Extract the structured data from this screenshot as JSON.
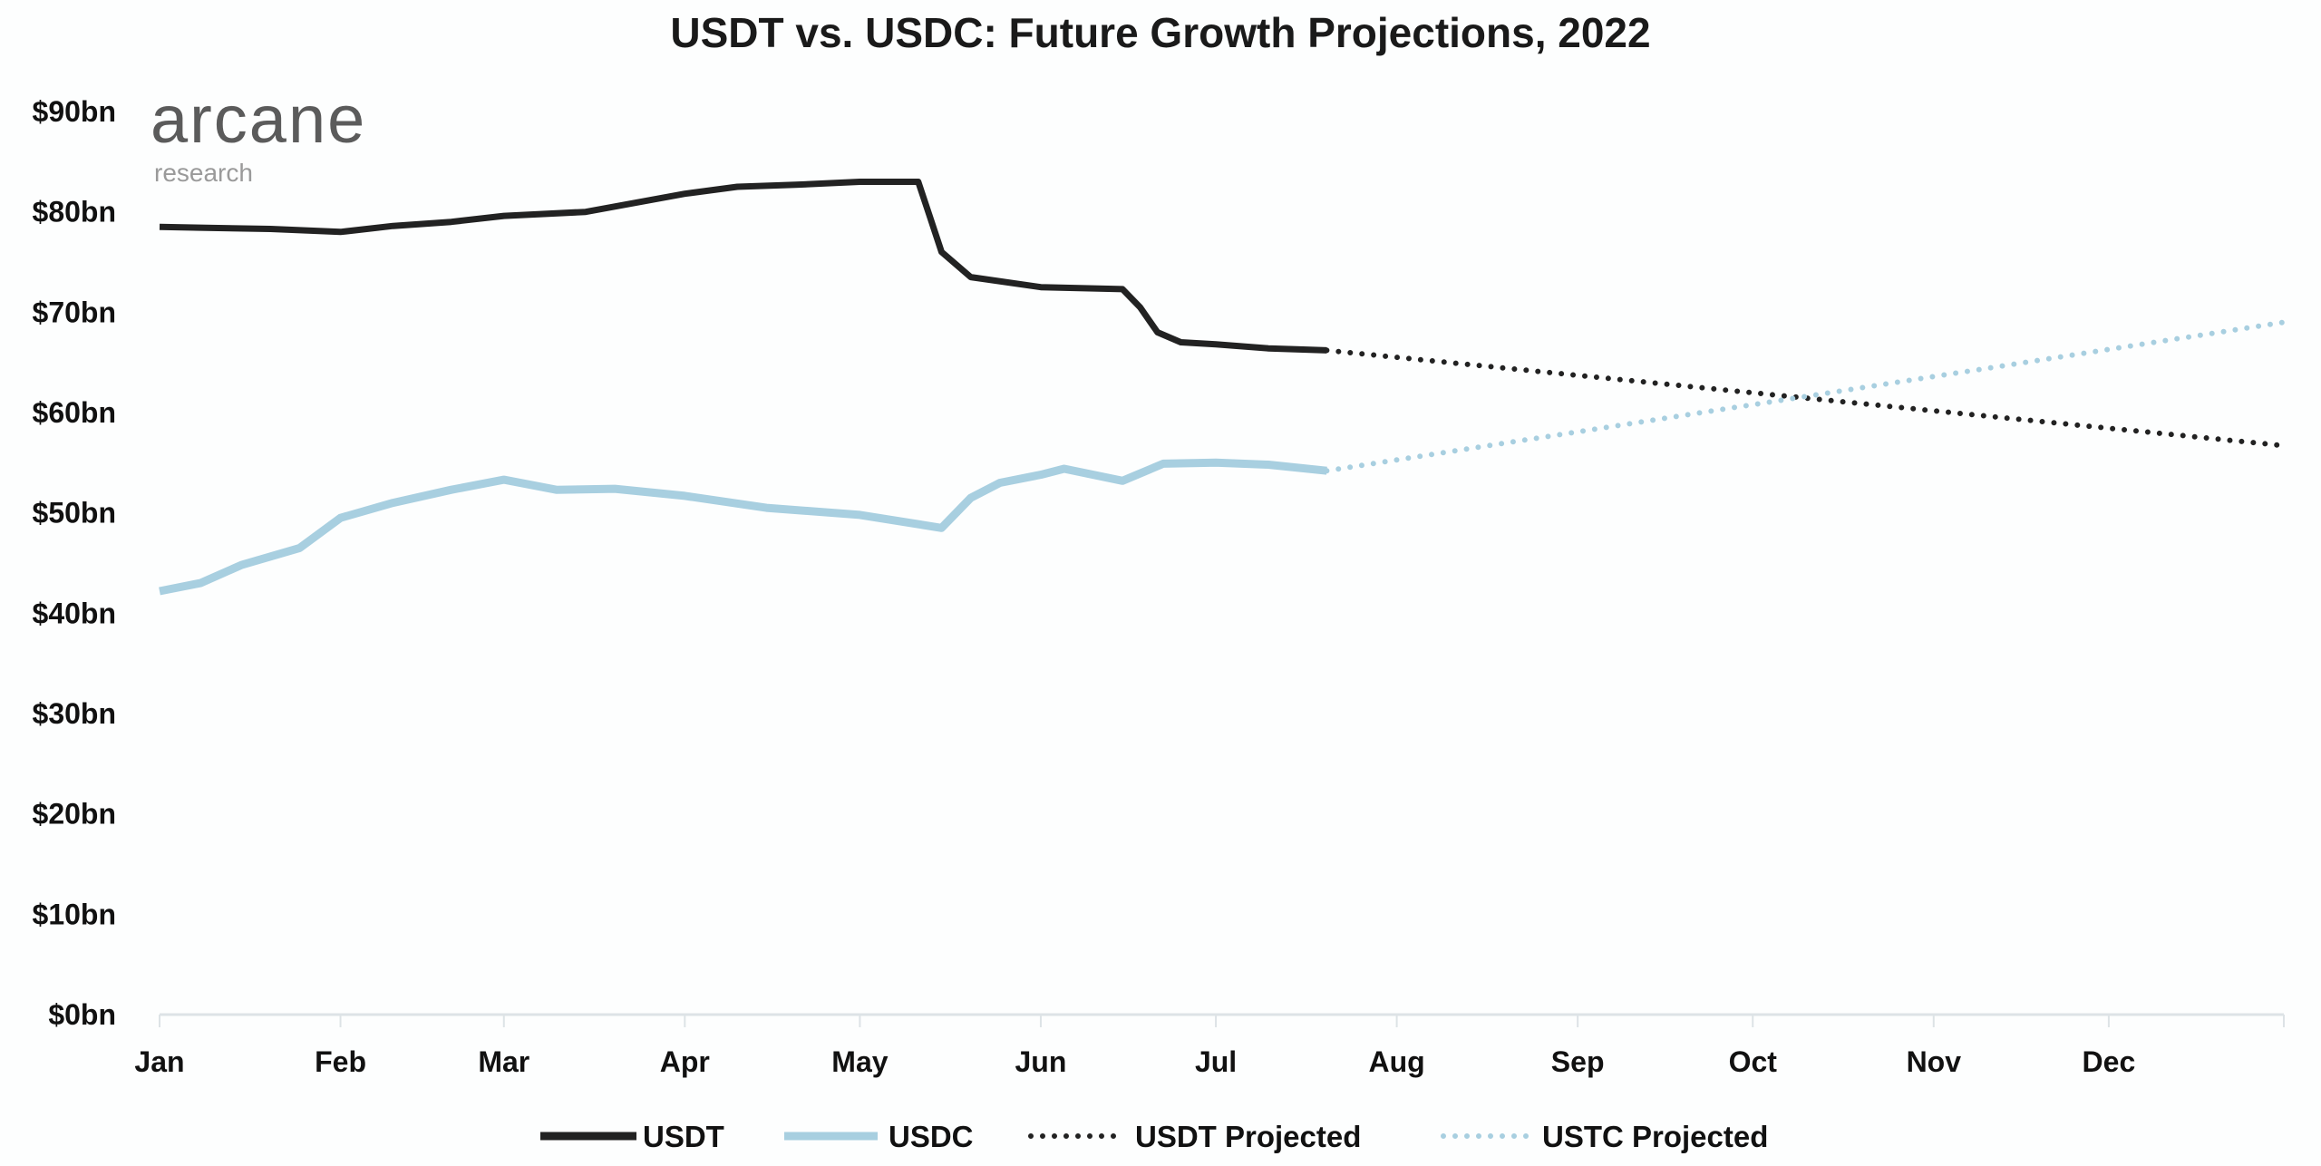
{
  "chart_data": {
    "type": "line",
    "title": "USDT vs. USDC: Future Growth Projections, 2022",
    "xlabel": "",
    "ylabel": "",
    "x_ticks": [
      "Jan",
      "Feb",
      "Mar",
      "Apr",
      "May",
      "Jun",
      "Jul",
      "Aug",
      "Sep",
      "Oct",
      "Nov",
      "Dec"
    ],
    "y_ticks": [
      "$0bn",
      "$10bn",
      "$20bn",
      "$30bn",
      "$40bn",
      "$50bn",
      "$60bn",
      "$70bn",
      "$80bn",
      "$90bn"
    ],
    "xlim": [
      "2022-01-01",
      "2022-12-31"
    ],
    "ylim": [
      0,
      90
    ],
    "grid": false,
    "legend_position": "bottom",
    "series": [
      {
        "name": "USDT",
        "style": "solid",
        "color": "#222222",
        "x": [
          "2022-01-01",
          "2022-01-10",
          "2022-01-20",
          "2022-02-01",
          "2022-02-10",
          "2022-02-20",
          "2022-03-01",
          "2022-03-15",
          "2022-04-01",
          "2022-04-10",
          "2022-04-20",
          "2022-05-01",
          "2022-05-11",
          "2022-05-13",
          "2022-05-15",
          "2022-05-20",
          "2022-06-01",
          "2022-06-15",
          "2022-06-18",
          "2022-06-21",
          "2022-06-25",
          "2022-07-01",
          "2022-07-10",
          "2022-07-20"
        ],
        "y": [
          78.5,
          78.4,
          78.3,
          78.0,
          78.6,
          79.0,
          79.6,
          80.0,
          81.8,
          82.5,
          82.7,
          83.0,
          83.0,
          79.5,
          76.0,
          73.5,
          72.5,
          72.3,
          70.5,
          68.0,
          67.0,
          66.8,
          66.4,
          66.2
        ]
      },
      {
        "name": "USDC",
        "style": "solid",
        "color": "#a8cfe0",
        "x": [
          "2022-01-01",
          "2022-01-08",
          "2022-01-15",
          "2022-01-25",
          "2022-02-01",
          "2022-02-10",
          "2022-02-20",
          "2022-03-01",
          "2022-03-10",
          "2022-03-20",
          "2022-04-01",
          "2022-04-15",
          "2022-05-01",
          "2022-05-15",
          "2022-05-20",
          "2022-05-25",
          "2022-06-01",
          "2022-06-05",
          "2022-06-15",
          "2022-06-22",
          "2022-07-01",
          "2022-07-10",
          "2022-07-20"
        ],
        "y": [
          42.2,
          43.0,
          44.8,
          46.5,
          49.5,
          51.0,
          52.3,
          53.3,
          52.3,
          52.4,
          51.7,
          50.5,
          49.8,
          48.5,
          51.5,
          53.0,
          53.8,
          54.4,
          53.2,
          54.9,
          55.0,
          54.8,
          54.2
        ]
      },
      {
        "name": "USDT Projected",
        "style": "dotted",
        "color": "#222222",
        "x": [
          "2022-07-20",
          "2022-12-31"
        ],
        "y": [
          66.2,
          56.7
        ]
      },
      {
        "name": "USTC Projected",
        "style": "dotted",
        "color": "#a8cfe0",
        "x": [
          "2022-07-20",
          "2022-12-31"
        ],
        "y": [
          54.2,
          69.0
        ]
      }
    ]
  },
  "logo": {
    "main": "arcane",
    "sub": "research"
  }
}
